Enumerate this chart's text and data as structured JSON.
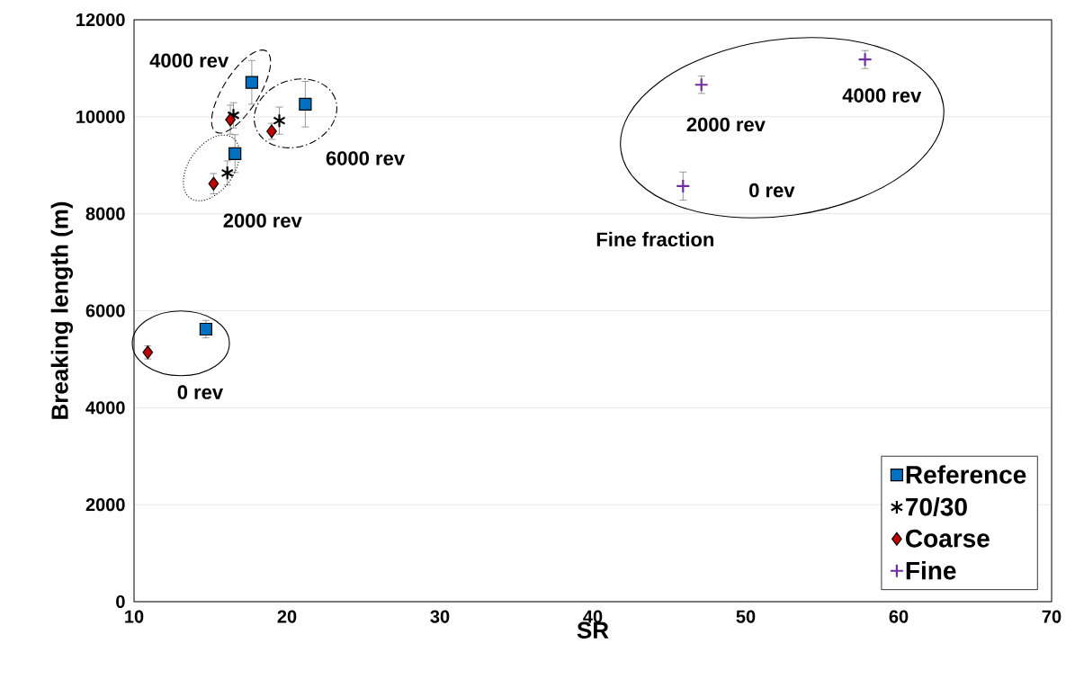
{
  "chart_data": {
    "type": "scatter",
    "xlabel": "SR",
    "ylabel": "Breaking length (m)",
    "xlim": [
      10,
      70
    ],
    "xticks": [
      10,
      20,
      30,
      40,
      50,
      60,
      70
    ],
    "ylim": [
      0,
      12000
    ],
    "yticks": [
      0,
      2000,
      4000,
      6000,
      8000,
      10000,
      12000
    ],
    "grid": "y",
    "legend": "bottom right",
    "series": [
      {
        "name": "Reference",
        "color": "#0070c0",
        "marker": "square",
        "x": [
          17.7,
          21.2,
          16.6,
          14.7
        ],
        "values": [
          10710,
          10260,
          9240,
          5620
        ],
        "errors": [
          450,
          470,
          390,
          180
        ]
      },
      {
        "name": "70/30",
        "color": "#000000",
        "marker": "cross",
        "x": [
          16.5,
          19.5,
          16.1
        ],
        "values": [
          10030,
          9920,
          8840
        ],
        "errors": [
          260,
          280,
          250
        ]
      },
      {
        "name": "Coarse",
        "color": "#c00000",
        "marker": "diamond",
        "x": [
          16.3,
          19.0,
          15.2,
          10.9
        ],
        "values": [
          9940,
          9700,
          8620,
          5140
        ],
        "errors": [
          300,
          165,
          210,
          135
        ]
      },
      {
        "name": "Fine",
        "color": "#7030a0",
        "x": [
          47.1,
          57.8,
          45.9
        ],
        "values": [
          10660,
          11180,
          8570
        ],
        "errors": [
          180,
          185,
          290
        ]
      }
    ],
    "annotations": [
      "4000 rev",
      "6000 rev",
      "2000 rev",
      "0 rev",
      "Fine fraction",
      "2000 rev",
      "4000 rev",
      "0 rev"
    ]
  }
}
